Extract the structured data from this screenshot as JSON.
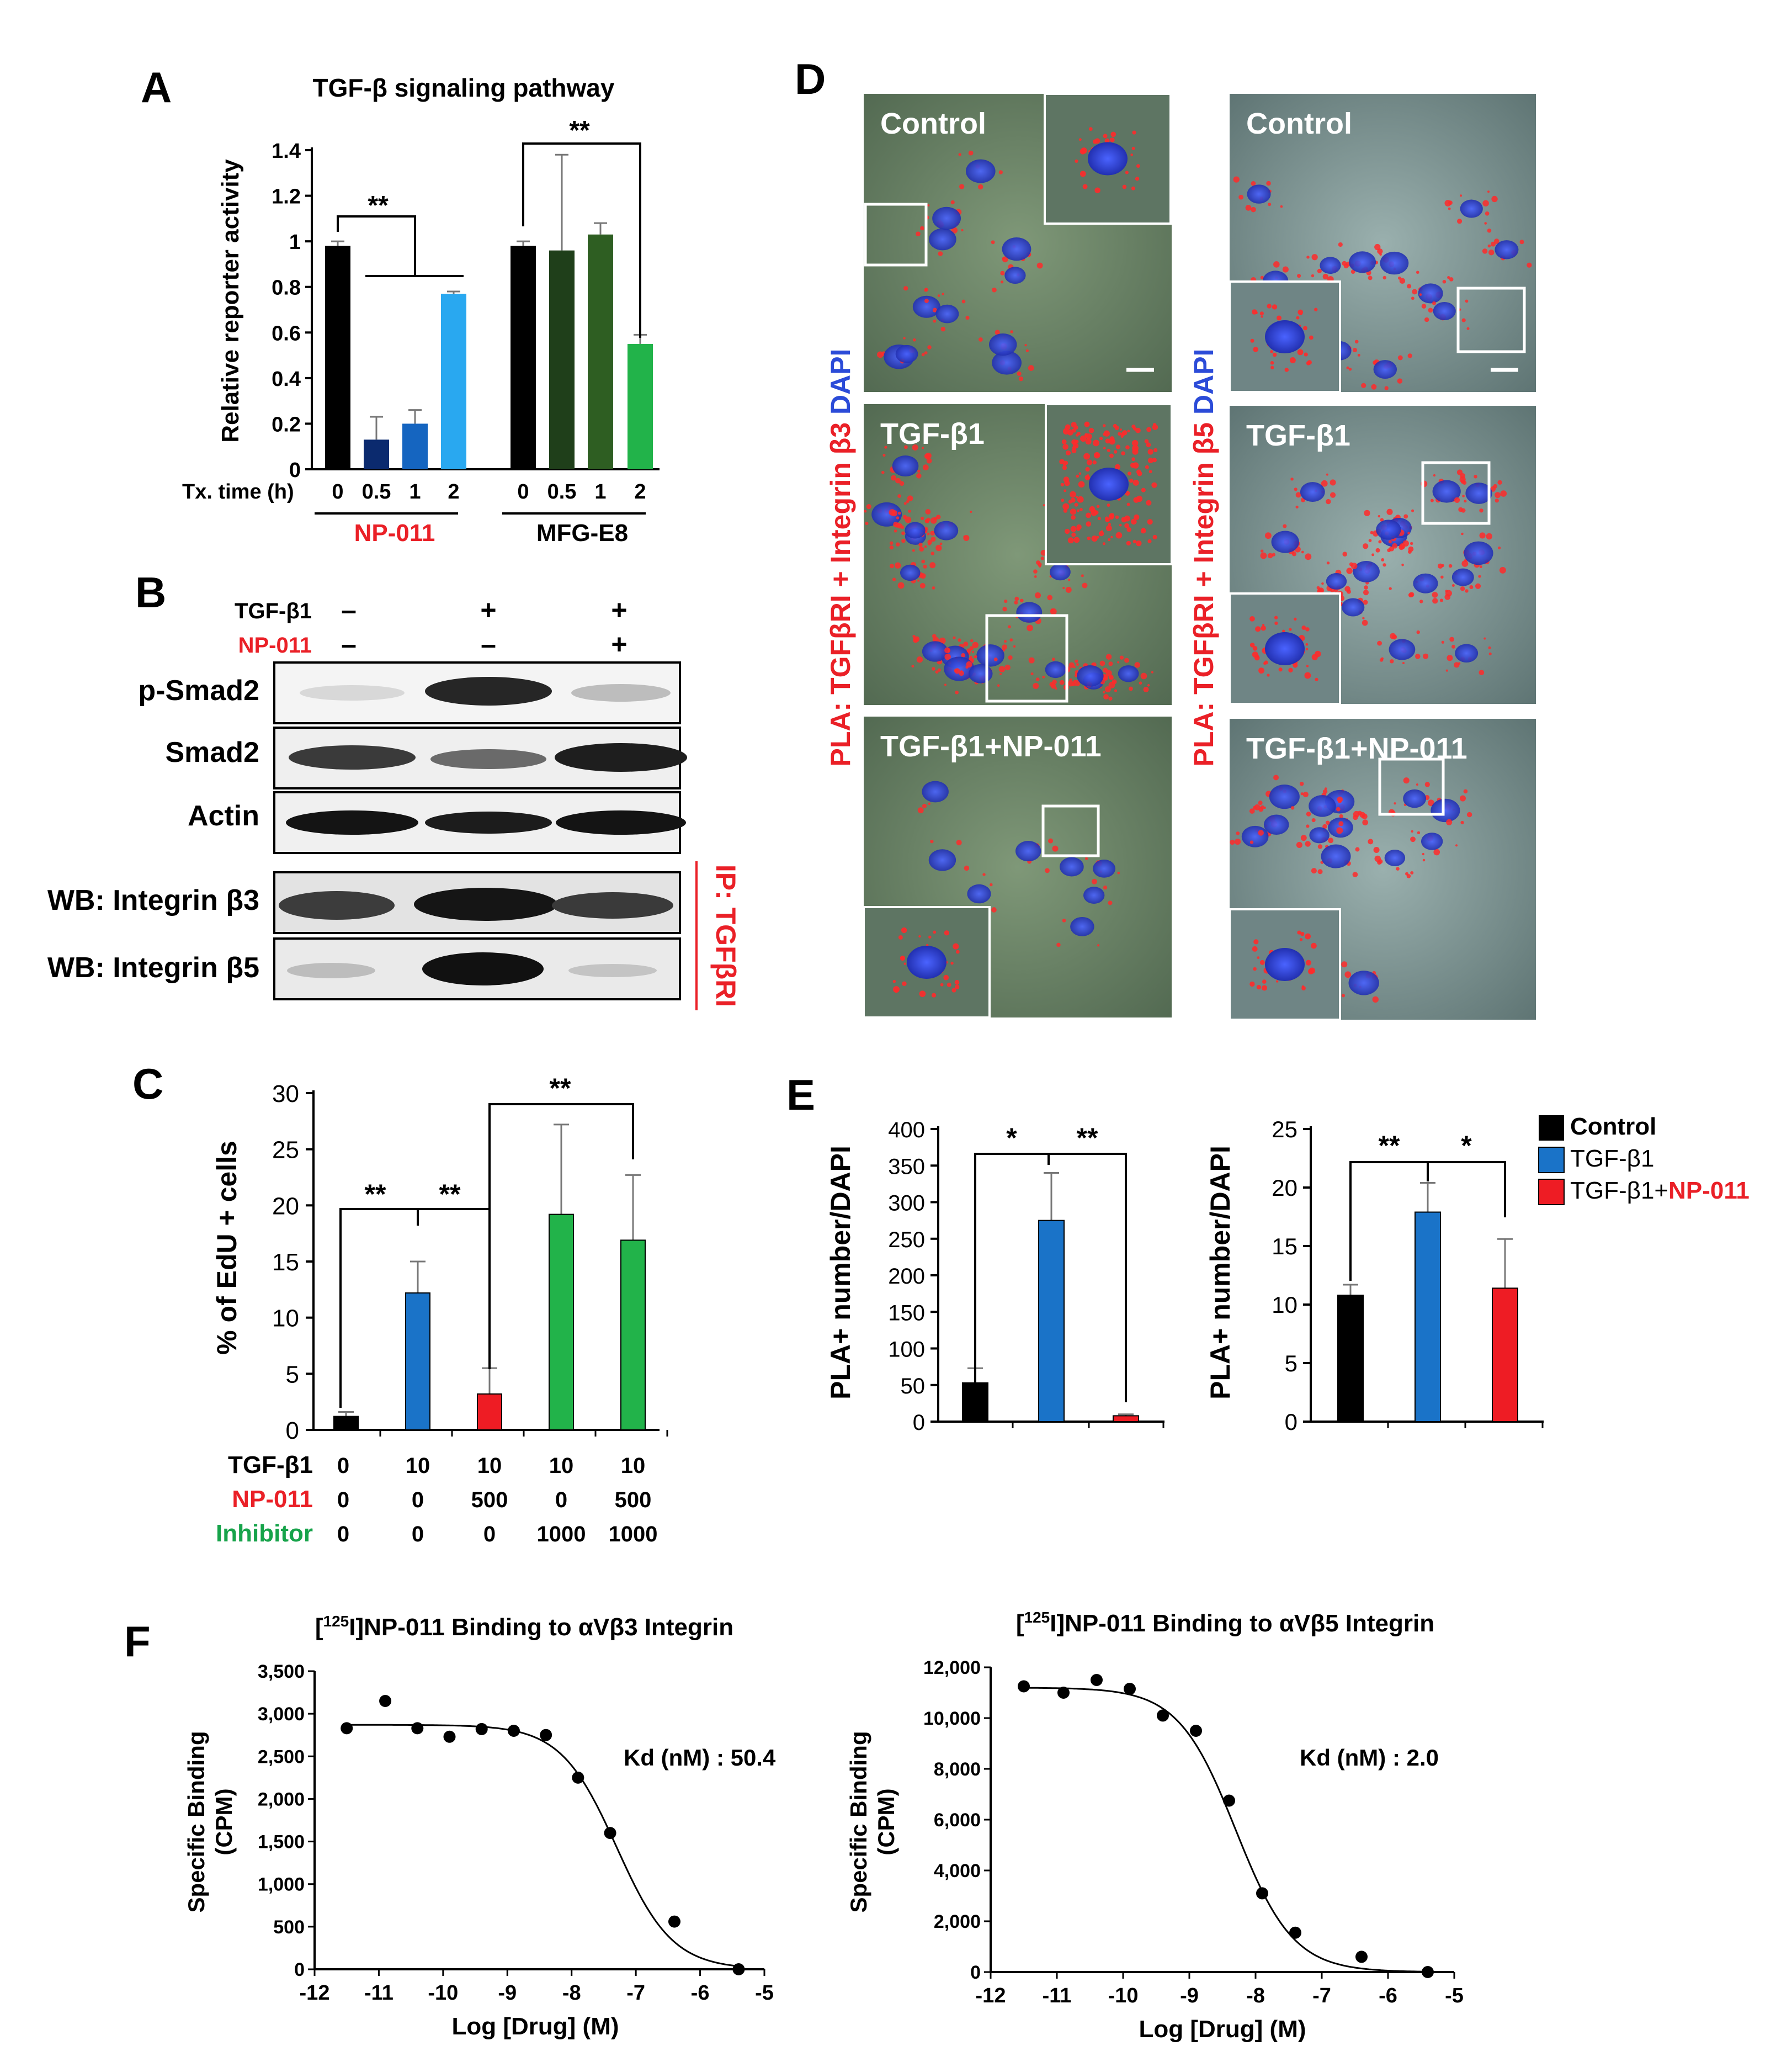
{
  "colors": {
    "black": "#000000",
    "red": "#ea2027",
    "green": "#16a34a",
    "blue_dark": "#0b2a6e",
    "blue_mid": "#1565c0",
    "blue_light": "#29a8f0",
    "bar_blue": "#1a73c8",
    "bar_red": "#ee1c24",
    "green_dark": "#1f3f1a",
    "green_mid": "#2e5e22",
    "green_light": "#5b8f3c",
    "green_bright": "#22b34a",
    "dapi": "#3a4fe0",
    "pla": "#ff2a2a",
    "micro_bg1": "#6f8a6c",
    "micro_bg2": "#8aa2a2"
  },
  "panel_letters": [
    "A",
    "B",
    "C",
    "D",
    "E",
    "F"
  ],
  "panelA": {
    "title": "TGF-β signaling pathway",
    "ylabel": "Relative reporter activity",
    "xlabel_prefix": "Tx. time (h)",
    "group1_label": "NP-011",
    "group2_label": "MFG-E8",
    "sig1": "**",
    "sig2": "**"
  },
  "panelB": {
    "row_tgf_label": "TGF-β1",
    "row_np_label": "NP-011",
    "tgf_signs": [
      "–",
      "+",
      "+"
    ],
    "np_signs": [
      "–",
      "–",
      "+"
    ],
    "blot_labels": [
      "p-Smad2",
      "Smad2",
      "Actin",
      "WB: Integrin β3",
      "WB: Integrin β5"
    ],
    "ip_label": "IP: TGFβRI"
  },
  "panelC": {
    "ylabel": "% of EdU + cells",
    "row_labels": [
      "TGF-β1",
      "NP-011",
      "Inhibitor"
    ],
    "tgf_values": [
      "0",
      "10",
      "10",
      "10",
      "10"
    ],
    "np_values": [
      "0",
      "0",
      "500",
      "0",
      "500"
    ],
    "inhibitor_values": [
      "0",
      "0",
      "0",
      "1000",
      "1000"
    ],
    "sigs": [
      "**",
      "**",
      "**"
    ]
  },
  "panelD": {
    "left_axis_label_parts": [
      "PLA: TGFβRI + Integrin β3",
      " DAPI"
    ],
    "right_axis_label_parts": [
      "PLA: TGFβRI + Integrin β5",
      " DAPI"
    ],
    "image_labels": [
      "Control",
      "TGF-β1",
      "TGF-β1+NP-011"
    ]
  },
  "panelE": {
    "ylabel": "PLA+ number/DAPI",
    "legend": [
      "Control",
      "TGF-β1",
      "TGF-β1+",
      "NP-011"
    ],
    "sigs_left": [
      "*",
      "**"
    ],
    "sigs_right": [
      "**",
      "*"
    ]
  },
  "panelF": {
    "left_title": "[125I]NP-011 Binding to αVβ3 Integrin",
    "right_title": "[125I]NP-011 Binding to αVβ5 Integrin",
    "title_sup": "125",
    "left_kd": "Kd (nM) : 50.4",
    "right_kd": "Kd (nM) : 2.0",
    "ylabel1": "Specific Binding",
    "ylabel2": "(CPM)",
    "xlabel": "Log [Drug] (M)"
  },
  "chart_data": [
    {
      "type": "bar",
      "id": "A",
      "title": "TGF-β signaling pathway",
      "ylabel": "Relative reporter activity",
      "xlabel": "Tx. time (h)",
      "ylim": [
        0,
        1.4
      ],
      "yticks": [
        "0",
        "0.2",
        "0.4",
        "0.6",
        "0.8",
        "1",
        "1.2",
        "1.4"
      ],
      "groups": [
        {
          "name": "NP-011",
          "categories": [
            "0",
            "0.5",
            "1",
            "2"
          ],
          "values": [
            0.98,
            0.13,
            0.2,
            0.77
          ],
          "errors": [
            0.02,
            0.1,
            0.06,
            0.01
          ]
        },
        {
          "name": "MFG-E8",
          "categories": [
            "0",
            "0.5",
            "1",
            "2"
          ],
          "values": [
            0.98,
            0.96,
            1.03,
            0.55
          ],
          "errors": [
            0.02,
            0.42,
            0.05,
            0.04
          ]
        }
      ]
    },
    {
      "type": "bar",
      "id": "C",
      "ylabel": "% of EdU + cells",
      "ylim": [
        0,
        30
      ],
      "yticks": [
        "0",
        "5",
        "10",
        "15",
        "20",
        "25",
        "30"
      ],
      "values": [
        1.2,
        12.2,
        3.2,
        19.2,
        16.9
      ],
      "errors": [
        0.4,
        2.8,
        2.3,
        8.0,
        5.8
      ]
    },
    {
      "type": "bar",
      "id": "E-left",
      "ylabel": "PLA+ number/DAPI",
      "ylim": [
        0,
        400
      ],
      "yticks": [
        "0",
        "50",
        "100",
        "150",
        "200",
        "250",
        "300",
        "350",
        "400"
      ],
      "categories": [
        "Control",
        "TGF-β1",
        "TGF-β1+NP-011"
      ],
      "values": [
        53,
        275,
        8
      ],
      "errors": [
        20,
        65,
        2
      ]
    },
    {
      "type": "bar",
      "id": "E-right",
      "ylabel": "PLA+ number/DAPI",
      "ylim": [
        0,
        25
      ],
      "yticks": [
        "0",
        "5",
        "10",
        "15",
        "20",
        "25"
      ],
      "categories": [
        "Control",
        "TGF-β1",
        "TGF-β1+NP-011"
      ],
      "values": [
        10.8,
        17.9,
        11.4
      ],
      "errors": [
        0.9,
        2.5,
        4.2
      ]
    },
    {
      "type": "scatter",
      "id": "F-left",
      "title": "[125I]NP-011 Binding to αVβ3 Integrin",
      "xlabel": "Log [Drug] (M)",
      "ylabel": "Specific Binding (CPM)",
      "xlim": [
        -12,
        -5
      ],
      "ylim": [
        0,
        3500
      ],
      "xticks": [
        "-12",
        "-11",
        "-10",
        "-9",
        "-8",
        "-7",
        "-6",
        "-5"
      ],
      "yticks": [
        "0",
        "500",
        "1,000",
        "1,500",
        "2,000",
        "2,500",
        "3,000",
        "3,500"
      ],
      "x": [
        -11.5,
        -10.9,
        -10.4,
        -9.9,
        -9.4,
        -8.9,
        -8.4,
        -7.9,
        -7.4,
        -6.4,
        -5.4
      ],
      "y": [
        2830,
        3150,
        2830,
        2730,
        2820,
        2800,
        2750,
        2250,
        1600,
        560,
        0
      ],
      "fit": {
        "top": 2870,
        "bottom": 0,
        "logIC50": -7.3,
        "hill": 1.0
      },
      "annotation": "Kd (nM) : 50.4"
    },
    {
      "type": "scatter",
      "id": "F-right",
      "title": "[125I]NP-011 Binding to αVβ5 Integrin",
      "xlabel": "Log [Drug] (M)",
      "ylabel": "Specific Binding (CPM)",
      "xlim": [
        -12,
        -5
      ],
      "ylim": [
        0,
        12000
      ],
      "xticks": [
        "-12",
        "-11",
        "-10",
        "-9",
        "-8",
        "-7",
        "-6",
        "-5"
      ],
      "yticks": [
        "0",
        "2,000",
        "4,000",
        "6,000",
        "8,000",
        "10,000",
        "12,000"
      ],
      "x": [
        -11.5,
        -10.9,
        -10.4,
        -9.9,
        -9.4,
        -8.9,
        -8.4,
        -7.9,
        -7.4,
        -6.4,
        -5.4
      ],
      "y": [
        11250,
        11000,
        11500,
        11150,
        10100,
        9500,
        6750,
        3100,
        1550,
        600,
        0
      ],
      "fit": {
        "top": 11200,
        "bottom": 0,
        "logIC50": -8.3,
        "hill": 1.0
      },
      "annotation": "Kd (nM) : 2.0"
    }
  ]
}
